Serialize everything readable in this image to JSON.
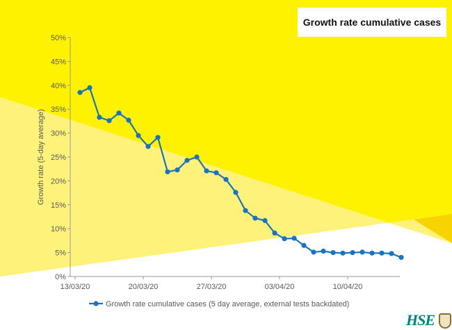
{
  "title": "Growth rate cumulative cases",
  "logo_text": "HSE",
  "colors": {
    "line": "#1874c2",
    "yellow": "#fef200",
    "light_yellow": "#fff27a",
    "white": "#ffffff",
    "axis": "#9a9a9a",
    "text": "#595959"
  },
  "chart_data": {
    "type": "line",
    "title": "Growth rate cumulative cases",
    "xlabel": "",
    "ylabel": "Growth rate (5-day average)",
    "ylim": [
      0,
      50
    ],
    "yticks": [
      0,
      5,
      10,
      15,
      20,
      25,
      30,
      35,
      40,
      45,
      50
    ],
    "ytick_labels": [
      "0%",
      "5%",
      "10%",
      "15%",
      "20%",
      "25%",
      "30%",
      "35%",
      "40%",
      "45%",
      "50%"
    ],
    "xticks": [
      {
        "index": 0,
        "label": "13/03/20"
      },
      {
        "index": 7,
        "label": "20/03/20"
      },
      {
        "index": 14,
        "label": "27/03/20"
      },
      {
        "index": 21,
        "label": "03/04/20"
      },
      {
        "index": 28,
        "label": "10/04/20"
      }
    ],
    "grid": false,
    "legend_position": "bottom",
    "series": [
      {
        "name": "Growth rate cumulative cases (5 day average, external tests backdated)",
        "values": [
          38.5,
          39.5,
          33.3,
          32.6,
          34.2,
          32.7,
          29.5,
          27.2,
          29.1,
          21.9,
          22.3,
          24.3,
          25.0,
          22.1,
          21.7,
          20.3,
          17.6,
          13.8,
          12.2,
          11.7,
          9.1,
          7.9,
          8.0,
          6.5,
          5.1,
          5.3,
          5.0,
          4.9,
          5.0,
          5.1,
          4.9,
          4.9,
          4.8,
          4.0
        ]
      }
    ]
  }
}
